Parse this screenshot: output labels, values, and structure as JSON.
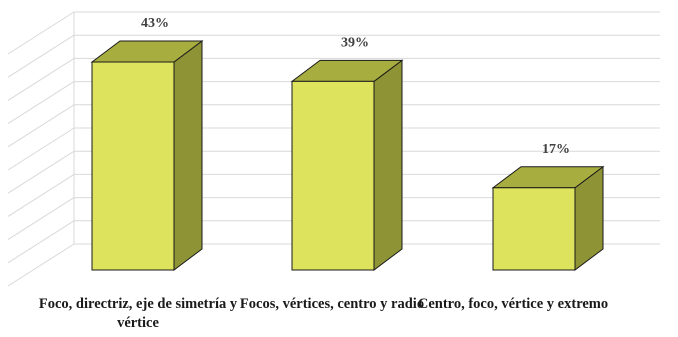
{
  "chart_data": {
    "type": "bar",
    "style": "3d-column",
    "categories": [
      "Foco, directriz, eje de simetría y vértice",
      "Focos, vértices, centro y radio",
      "Centro, foco, vértice y extremo"
    ],
    "values": [
      43,
      39,
      17
    ],
    "value_labels": [
      "43%",
      "39%",
      "17%"
    ],
    "value_unit": "%",
    "ylim": [
      0,
      45
    ],
    "grid": true,
    "legend": "none",
    "colors": {
      "front": "#dde35c",
      "top": "#a8ad3f",
      "side": "#8e9336",
      "outline": "#1a1a1a",
      "grid": "#d9d9d9"
    }
  }
}
